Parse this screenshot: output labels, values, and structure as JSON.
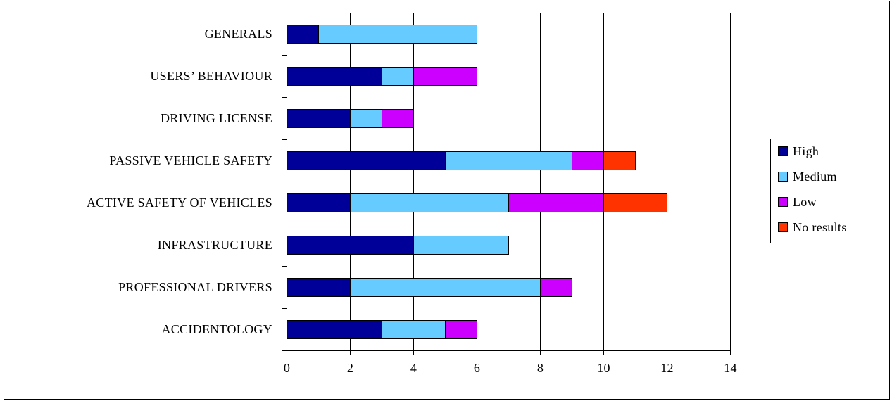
{
  "chart_data": {
    "type": "bar",
    "orientation": "horizontal",
    "stacked": true,
    "categories": [
      "GENERALS",
      "USERS’ BEHAVIOUR",
      "DRIVING LICENSE",
      "PASSIVE VEHICLE SAFETY",
      "ACTIVE SAFETY OF VEHICLES",
      "INFRASTRUCTURE",
      "PROFESSIONAL DRIVERS",
      "ACCIDENTOLOGY"
    ],
    "series": [
      {
        "name": "High",
        "color": "#000099",
        "values": [
          1,
          3,
          2,
          5,
          2,
          4,
          2,
          3
        ]
      },
      {
        "name": "Medium",
        "color": "#66ccff",
        "values": [
          5,
          1,
          1,
          4,
          5,
          3,
          6,
          2
        ]
      },
      {
        "name": "Low",
        "color": "#cc00ff",
        "values": [
          0,
          2,
          1,
          1,
          3,
          0,
          1,
          1
        ]
      },
      {
        "name": "No results",
        "color": "#ff3300",
        "values": [
          0,
          0,
          0,
          1,
          2,
          0,
          0,
          0
        ]
      }
    ],
    "xlim": [
      0,
      14
    ],
    "xticks": [
      "0",
      "2",
      "4",
      "6",
      "8",
      "10",
      "12",
      "14"
    ],
    "title": "",
    "xlabel": "",
    "ylabel": "",
    "grid": "vertical",
    "legend": "right"
  }
}
